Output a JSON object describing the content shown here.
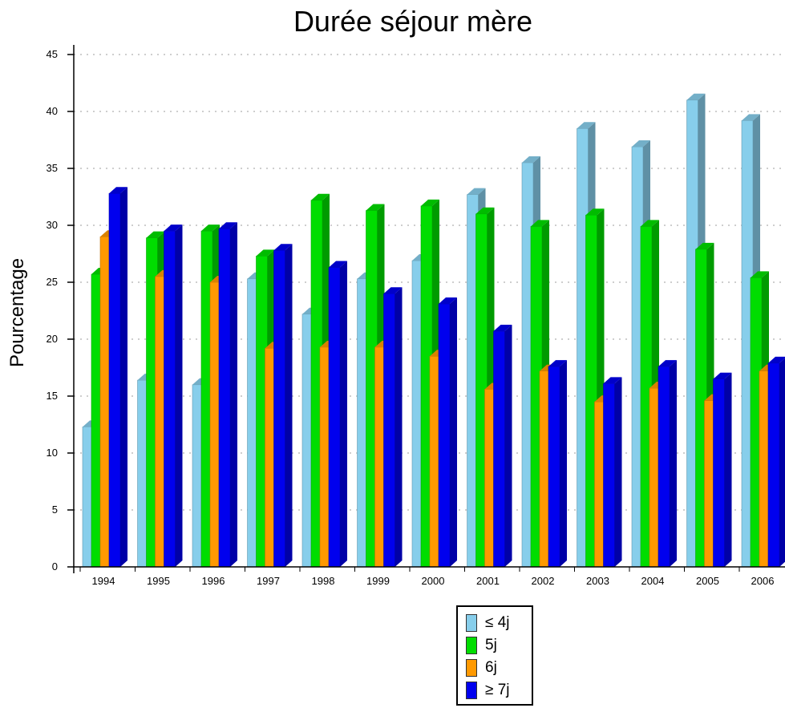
{
  "chart_data": {
    "type": "bar",
    "title": "Durée séjour mère",
    "xlabel": "",
    "ylabel": "Pourcentage",
    "ylim": [
      0,
      45
    ],
    "yticks": [
      0,
      5,
      10,
      15,
      20,
      25,
      30,
      35,
      40,
      45
    ],
    "grid": true,
    "legend_position": "bottom",
    "categories": [
      "1994",
      "1995",
      "1996",
      "1997",
      "1998",
      "1999",
      "2000",
      "2001",
      "2002",
      "2003",
      "2004",
      "2005",
      "2006"
    ],
    "series": [
      {
        "name": "≤  4j",
        "color": "#87ceeb",
        "values": [
          12.3,
          16.4,
          16.0,
          25.3,
          22.2,
          25.3,
          26.9,
          32.7,
          35.5,
          38.5,
          36.9,
          41.0,
          39.2
        ]
      },
      {
        "name": "5j",
        "color": "#00dd00",
        "values": [
          25.7,
          28.9,
          29.5,
          27.3,
          32.2,
          31.3,
          31.7,
          31.0,
          29.9,
          30.9,
          29.9,
          27.9,
          25.4
        ]
      },
      {
        "name": "6j",
        "color": "#ff9900",
        "values": [
          29.0,
          25.5,
          25.0,
          19.2,
          19.3,
          19.3,
          18.5,
          15.6,
          17.2,
          14.5,
          15.7,
          14.6,
          17.2
        ]
      },
      {
        "name": "≥  7j",
        "color": "#0000ee",
        "values": [
          32.8,
          29.5,
          29.7,
          27.8,
          26.3,
          24.0,
          23.1,
          20.7,
          17.6,
          16.1,
          17.6,
          16.5,
          17.9
        ]
      }
    ]
  }
}
